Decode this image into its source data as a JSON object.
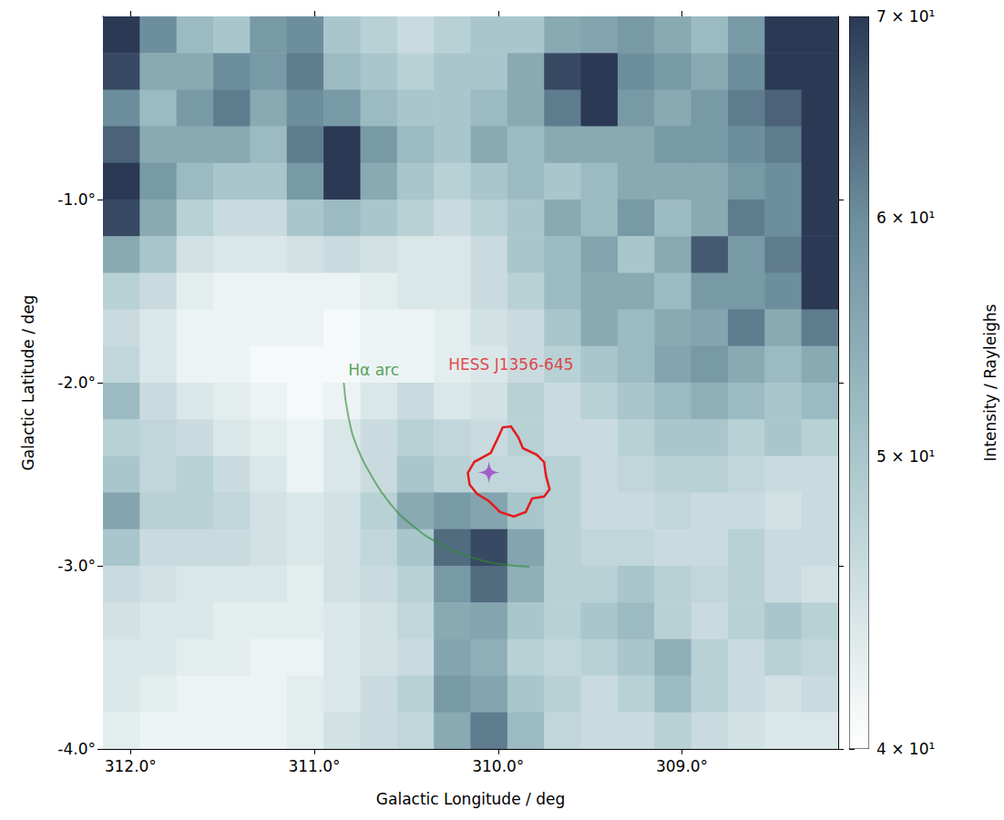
{
  "chart_data": {
    "type": "heatmap",
    "x_label": "Galactic Longitude / deg",
    "y_label": "Galactic Latitude / deg",
    "xlim": [
      312.15,
      308.15
    ],
    "ylim": [
      -4.0,
      0.0
    ],
    "xticks": [
      {
        "value": 312,
        "label": "312.0°"
      },
      {
        "value": 311,
        "label": "311.0°"
      },
      {
        "value": 310,
        "label": "310.0°"
      },
      {
        "value": 309,
        "label": "309.0°"
      }
    ],
    "yticks": [
      {
        "value": -1,
        "label": "-1.0°"
      },
      {
        "value": -2,
        "label": "-2.0°"
      },
      {
        "value": -3,
        "label": "-3.0°"
      },
      {
        "value": -4,
        "label": "-4.0°"
      }
    ],
    "cells": {
      "lon": [
        312.05,
        311.85,
        311.65,
        311.45,
        311.25,
        311.05,
        310.85,
        310.65,
        310.45,
        310.25,
        310.05,
        309.85,
        309.65,
        309.45,
        309.25,
        309.05,
        308.85,
        308.65,
        308.45,
        308.25
      ],
      "lat": [
        -0.1,
        -0.3,
        -0.5,
        -0.7,
        -0.9,
        -1.1,
        -1.3,
        -1.5,
        -1.7,
        -1.9,
        -2.1,
        -2.3,
        -2.5,
        -2.7,
        -2.9,
        -3.1,
        -3.3,
        -3.5,
        -3.7,
        -3.9
      ],
      "values": [
        [
          70,
          60,
          52,
          50,
          58,
          60,
          50,
          48,
          46,
          48,
          50,
          50,
          55,
          56,
          58,
          55,
          52,
          58,
          72,
          72
        ],
        [
          68,
          55,
          55,
          60,
          58,
          62,
          52,
          50,
          48,
          50,
          50,
          55,
          68,
          75,
          60,
          58,
          55,
          60,
          70,
          72
        ],
        [
          60,
          52,
          58,
          62,
          55,
          60,
          58,
          52,
          50,
          50,
          52,
          55,
          62,
          70,
          58,
          55,
          58,
          62,
          65,
          72
        ],
        [
          65,
          55,
          55,
          55,
          52,
          62,
          75,
          58,
          52,
          50,
          55,
          52,
          55,
          55,
          55,
          58,
          58,
          60,
          62,
          72
        ],
        [
          70,
          58,
          52,
          50,
          50,
          58,
          72,
          55,
          50,
          48,
          50,
          52,
          50,
          52,
          55,
          55,
          55,
          58,
          60,
          72
        ],
        [
          68,
          55,
          48,
          46,
          46,
          50,
          52,
          50,
          48,
          46,
          48,
          50,
          55,
          52,
          58,
          52,
          55,
          62,
          60,
          72
        ],
        [
          55,
          50,
          45,
          44,
          44,
          45,
          46,
          45,
          44,
          44,
          46,
          50,
          52,
          56,
          50,
          55,
          66,
          58,
          62,
          72
        ],
        [
          48,
          46,
          43,
          42,
          42,
          42,
          42,
          43,
          44,
          44,
          46,
          48,
          52,
          55,
          55,
          52,
          58,
          58,
          60,
          70
        ],
        [
          46,
          44,
          42,
          42,
          42,
          42,
          41,
          42,
          42,
          43,
          45,
          46,
          50,
          55,
          52,
          55,
          56,
          62,
          55,
          62
        ],
        [
          47,
          44,
          42,
          42,
          41,
          41,
          41,
          42,
          42,
          43,
          44,
          46,
          48,
          50,
          52,
          56,
          58,
          55,
          52,
          55
        ],
        [
          52,
          46,
          44,
          43,
          42,
          41,
          42,
          44,
          46,
          44,
          45,
          48,
          46,
          48,
          50,
          52,
          54,
          52,
          50,
          52
        ],
        [
          48,
          47,
          46,
          44,
          43,
          42,
          44,
          46,
          48,
          47,
          46,
          48,
          46,
          46,
          48,
          50,
          50,
          48,
          50,
          48
        ],
        [
          50,
          47,
          48,
          46,
          44,
          42,
          44,
          46,
          50,
          48,
          47,
          47,
          48,
          46,
          47,
          48,
          48,
          47,
          46,
          46
        ],
        [
          56,
          48,
          48,
          47,
          45,
          44,
          45,
          48,
          55,
          58,
          56,
          50,
          48,
          46,
          46,
          47,
          46,
          46,
          45,
          46
        ],
        [
          50,
          46,
          46,
          46,
          45,
          44,
          45,
          47,
          50,
          64,
          68,
          56,
          48,
          47,
          47,
          46,
          46,
          48,
          46,
          46
        ],
        [
          46,
          45,
          44,
          44,
          44,
          43,
          45,
          46,
          48,
          58,
          64,
          54,
          48,
          48,
          50,
          48,
          47,
          48,
          46,
          45
        ],
        [
          45,
          44,
          44,
          43,
          43,
          43,
          44,
          45,
          47,
          55,
          56,
          50,
          48,
          50,
          52,
          48,
          46,
          48,
          50,
          48
        ],
        [
          44,
          44,
          43,
          43,
          42,
          42,
          44,
          45,
          46,
          56,
          54,
          48,
          47,
          48,
          50,
          54,
          48,
          46,
          48,
          47
        ],
        [
          44,
          43,
          42,
          42,
          42,
          43,
          44,
          46,
          48,
          58,
          56,
          50,
          48,
          46,
          48,
          52,
          48,
          46,
          45,
          46
        ],
        [
          43,
          42,
          42,
          42,
          42,
          43,
          45,
          46,
          47,
          55,
          62,
          52,
          47,
          46,
          46,
          48,
          46,
          45,
          44,
          44
        ]
      ]
    },
    "colorbar": {
      "label": "Intensity / Rayleighs",
      "range": [
        40,
        70
      ],
      "log": true,
      "ticks": [
        {
          "value": 40,
          "label": "4 × 10¹"
        },
        {
          "value": 50,
          "label": "5 × 10¹"
        },
        {
          "value": 60,
          "label": "6 × 10¹"
        },
        {
          "value": 70,
          "label": "7 × 10¹"
        }
      ]
    },
    "contour": {
      "label": "HESS J1356-645",
      "color": "#e41a1c",
      "lon": [
        310.165,
        310.13,
        310.04,
        310.0,
        309.975,
        309.93,
        309.89,
        309.865,
        309.79,
        309.75,
        309.74,
        309.72,
        309.75,
        309.815,
        309.85,
        309.915,
        309.99,
        310.05,
        310.115,
        310.155
      ],
      "lat": [
        -2.493,
        -2.433,
        -2.383,
        -2.299,
        -2.244,
        -2.239,
        -2.299,
        -2.358,
        -2.393,
        -2.433,
        -2.507,
        -2.582,
        -2.622,
        -2.632,
        -2.706,
        -2.731,
        -2.706,
        -2.647,
        -2.607,
        -2.557
      ]
    },
    "arc": {
      "label": "Hα arc",
      "color": "#2e8b2e",
      "lon": [
        310.84,
        310.815,
        310.765,
        310.69,
        310.59,
        310.465,
        310.315,
        310.14,
        309.99,
        309.83
      ],
      "lat": [
        -2.0,
        -2.184,
        -2.358,
        -2.507,
        -2.657,
        -2.781,
        -2.881,
        -2.955,
        -2.99,
        -3.005
      ]
    },
    "source": {
      "lon": 310.05,
      "lat": -2.49,
      "color": "#9b40c8",
      "marker": "star"
    }
  }
}
